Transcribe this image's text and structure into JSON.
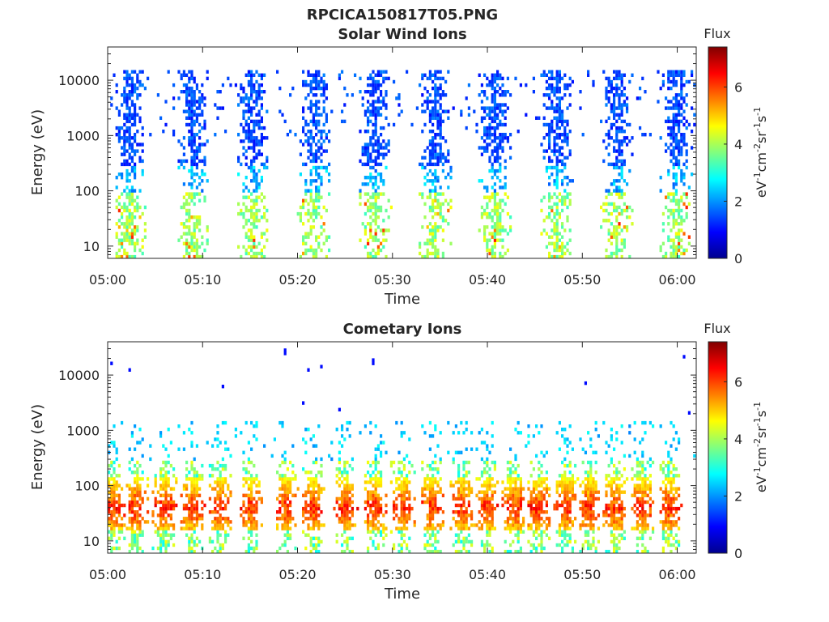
{
  "figure": {
    "title": "RPCICA150817T05.PNG"
  },
  "chart_data": [
    {
      "type": "heatmap",
      "title": "Solar Wind Ions",
      "xlabel": "Time",
      "ylabel": "Energy (eV)",
      "x_axis": {
        "type": "time",
        "start": "05:00",
        "end": "06:02",
        "ticks": [
          "05:00",
          "05:10",
          "05:20",
          "05:30",
          "05:40",
          "05:50",
          "06:00"
        ]
      },
      "y_axis": {
        "scale": "log",
        "range": [
          6,
          40000
        ],
        "ticks": [
          10,
          100,
          1000,
          10000
        ],
        "tick_labels": [
          "10",
          "100",
          "1000",
          "10000"
        ]
      },
      "colorbar": {
        "title": "Flux",
        "label": "eV-1cm-2sr-1s-1",
        "range": [
          0,
          7.4
        ],
        "ticks": [
          0,
          2,
          4,
          6
        ],
        "colormap": "jet"
      },
      "bursts_minutes": [
        2.3,
        9.0,
        15.3,
        21.8,
        28.1,
        34.5,
        40.8,
        47.3,
        53.6,
        59.9
      ],
      "burst_structure": {
        "high_energy_band_eV": [
          300,
          15000
        ],
        "high_energy_flux": 1.0,
        "low_energy_band_eV": [
          6,
          100
        ],
        "low_energy_flux": 3.2,
        "peak_flux_range": [
          5,
          6.5
        ]
      }
    },
    {
      "type": "heatmap",
      "title": "Cometary Ions",
      "xlabel": "Time",
      "ylabel": "Energy (eV)",
      "x_axis": {
        "type": "time",
        "start": "05:00",
        "end": "06:02",
        "ticks": [
          "05:00",
          "05:10",
          "05:20",
          "05:30",
          "05:40",
          "05:50",
          "06:00"
        ]
      },
      "y_axis": {
        "scale": "log",
        "range": [
          6,
          40000
        ],
        "ticks": [
          10,
          100,
          1000,
          10000
        ],
        "tick_labels": [
          "10",
          "100",
          "1000",
          "10000"
        ]
      },
      "colorbar": {
        "title": "Flux",
        "label": "eV-1cm-2sr-1s-1",
        "range": [
          0,
          7.4
        ],
        "ticks": [
          0,
          2,
          4,
          6
        ],
        "colormap": "jet"
      },
      "bursts_minutes": [
        0.6,
        3.0,
        6.0,
        9.0,
        11.8,
        15.1,
        18.9,
        21.7,
        25.1,
        28.2,
        31.1,
        34.2,
        37.4,
        40.0,
        42.8,
        45.4,
        48.3,
        50.7,
        53.5,
        56.3,
        59.2
      ],
      "burst_structure": {
        "core_band_eV": [
          15,
          150
        ],
        "core_peak_eV": 40,
        "core_peak_flux": 6.5,
        "envelope_band_eV": [
          6,
          300
        ],
        "envelope_flux": 3.5,
        "sparse_band_eV": [
          300,
          1500
        ],
        "sparse_flux": 2.0
      }
    }
  ]
}
